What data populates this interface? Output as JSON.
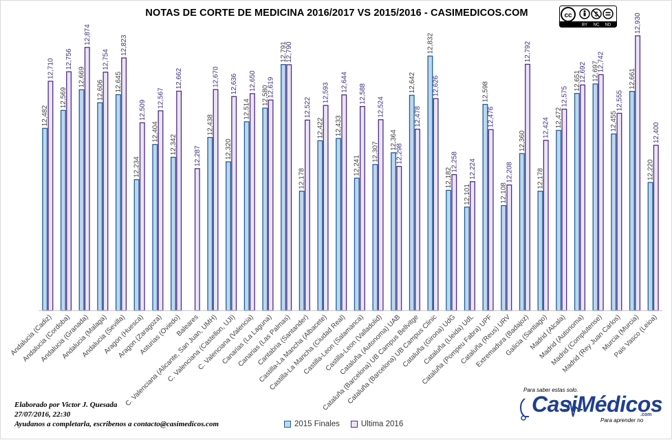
{
  "chart_data": {
    "type": "bar",
    "title": "NOTAS DE CORTE DE MEDICINA 2016/2017  VS 2015/2016  - CASIMEDICOS.COM",
    "ylim": [
      11.6,
      13.0
    ],
    "grid": false,
    "legend_position": "bottom",
    "categories": [
      "Andalucia (Cadiz)",
      "Andalucia (Cordoba)",
      "Andalucia (Granada)",
      "Andalucia (Malaga)",
      "Andalucia (Sevilla)",
      "Aragon (Huesca)",
      "Aragon (Zaragoza)",
      "Asturias (Oviedo)",
      "Baleares",
      "C. Valenciana (Alicante, San Juan, UMH)",
      "C. Valenciana (Castellon, UJI)",
      "C. Valenciana (Valencia)",
      "Canarias (La Laguna)",
      "Canarias (Las Palmas)",
      "Cantabria (Santander)",
      "Castilla-La Mancha (Albacete)",
      "Castilla-La Mancha (Ciudad Real)",
      "Castilla-Leon (Salamanca)",
      "Castilla-Leon (Valladolid)",
      "Cataluña (Autonoma) UAB",
      "Cataluña (Barcelona) UB Campus Bellvitge",
      "Cataluña (Barcelona) UB Campus Clinic",
      "Cataluña (Girona) UdG",
      "Cataluña (Lleida) UdL",
      "Cataluña (Pompeu Fabra) UPF",
      "Cataluña (Reus) URV",
      "Extremadura (Badajoz)",
      "Galicia (Santiago)",
      "Madrid (Alcala)",
      "Madrid (Autonoma)",
      "Madrid (Complutense)",
      "Madrid (Rey Juan Carlos)",
      "Murcia (Murcia)",
      "Pais Vasco (Leioa)"
    ],
    "series": [
      {
        "name": "2015 Finales",
        "values": [
          12.482,
          12.569,
          12.669,
          12.606,
          12.645,
          12.234,
          12.404,
          12.342,
          null,
          12.438,
          12.32,
          12.514,
          12.58,
          12.791,
          12.178,
          12.422,
          12.433,
          12.241,
          12.307,
          12.364,
          12.642,
          12.832,
          12.182,
          12.101,
          12.598,
          12.108,
          12.36,
          12.178,
          12.472,
          12.651,
          12.697,
          12.455,
          12.661,
          12.22
        ],
        "labels": [
          "12,482",
          "12,569",
          "12,669",
          "12,606",
          "12,645",
          "12,234",
          "12,404",
          "12,342",
          "",
          "12,438",
          "12,320",
          "12,514",
          "12,580",
          "12,791",
          "12,178",
          "12,422",
          "12,433",
          "12,241",
          "12,307",
          "12,364",
          "12,642",
          "12,832",
          "12,182",
          "12,101",
          "12,598",
          "12,108",
          "12,360",
          "12,178",
          "12,472",
          "12,651",
          "12,697",
          "12,455",
          "12,661",
          "12,220"
        ]
      },
      {
        "name": "Ultima 2016",
        "values": [
          12.71,
          12.756,
          12.874,
          12.754,
          12.823,
          12.509,
          12.567,
          12.662,
          12.287,
          12.67,
          12.636,
          12.65,
          12.619,
          12.79,
          12.522,
          12.593,
          12.644,
          12.588,
          12.524,
          12.298,
          12.478,
          12.626,
          12.258,
          12.224,
          12.476,
          12.208,
          12.792,
          12.424,
          12.575,
          12.692,
          12.742,
          12.555,
          12.93,
          12.4
        ],
        "labels": [
          "12,710",
          "12,756",
          "12,874",
          "12,754",
          "12,823",
          "12,509",
          "12,567",
          "12,662",
          "12,287",
          "12,670",
          "12,636",
          "12,650",
          "12,619",
          "12,790",
          "12,522",
          "12,593",
          "12,644",
          "12,588",
          "12,524",
          "12,298",
          "12,478",
          "12,626",
          "12,258",
          "12,224",
          "12,476",
          "12,208",
          "12,792",
          "12,424",
          "12,575",
          "12,692",
          "12,742",
          "12,555",
          "12,930",
          "12,400"
        ]
      }
    ]
  },
  "colors": {
    "series_2015_fill": "#bdd7ee",
    "series_2015_stroke": "#1f5c99",
    "series_2016_fill": "#ebe4f5",
    "series_2016_stroke": "#4b2a85",
    "label_2015": "#404040",
    "label_2016": "#403080",
    "logo_blue": "#1f3f8f"
  },
  "cc_badge": {
    "icons": [
      "cc-icon",
      "by-icon",
      "nc-icon",
      "nd-icon"
    ],
    "text": [
      "BY",
      "NC",
      "ND"
    ]
  },
  "footer": {
    "line1": "Elaborado por Victor J. Quesada",
    "line2": "27/07/2016, 22:30",
    "line3": " Ayudanos a completarla, escribenos a contacto@casimedicos.com"
  },
  "legend": {
    "item1": "2015 Finales",
    "item2": "Ultima 2016"
  },
  "logo": {
    "tagline_top": "Para saber estas solo.",
    "wordmark": "CasiMédicos",
    "suffix": ".com",
    "tagline_bottom": "Para aprender no"
  }
}
